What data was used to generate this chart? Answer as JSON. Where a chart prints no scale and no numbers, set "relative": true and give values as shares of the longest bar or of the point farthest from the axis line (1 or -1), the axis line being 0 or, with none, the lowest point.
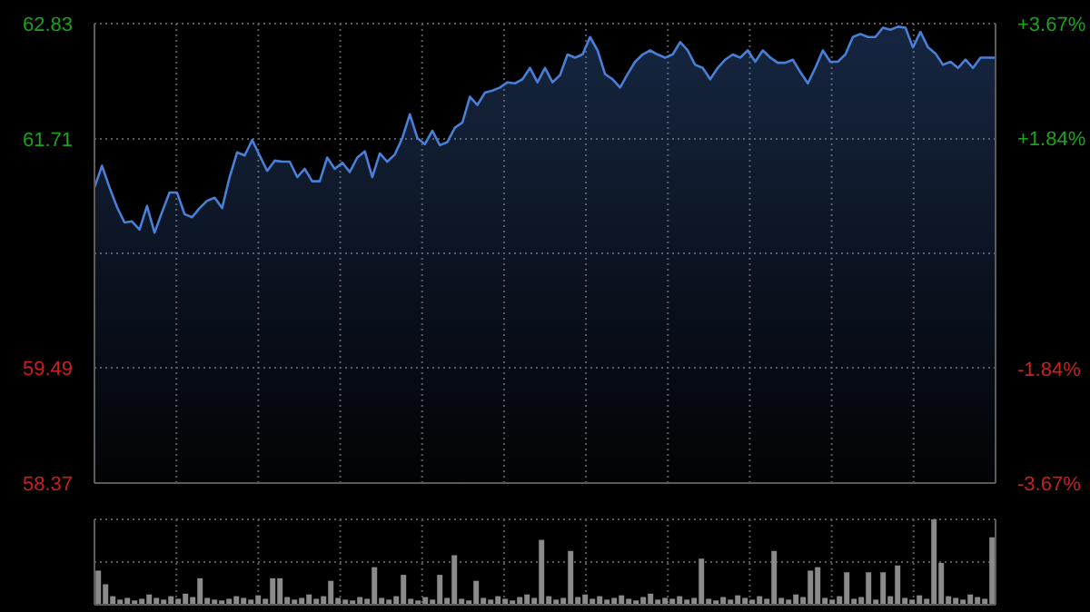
{
  "chart_data": [
    {
      "type": "area",
      "categories": [
        null,
        null,
        null,
        null,
        null,
        null,
        null,
        null,
        null,
        null,
        null,
        null,
        null,
        null,
        null,
        null,
        null,
        null,
        null,
        null,
        null,
        null,
        null,
        null,
        null,
        null,
        null,
        null,
        null,
        null,
        null,
        null,
        null,
        null,
        null,
        null,
        null,
        null,
        null,
        null,
        null,
        null,
        null,
        null,
        null,
        null,
        null,
        null,
        null,
        null,
        null,
        null,
        null,
        null,
        null,
        null,
        null,
        null,
        null,
        null,
        null,
        null,
        null,
        null,
        null,
        null,
        null,
        null,
        null,
        null,
        null,
        null,
        null,
        null,
        null,
        null,
        null,
        null,
        null,
        null,
        null,
        null,
        null,
        null,
        null,
        null,
        null,
        null,
        null,
        null,
        null,
        null,
        null,
        null,
        null,
        null,
        null,
        null,
        null,
        null,
        null,
        null,
        null,
        null,
        null,
        null,
        null,
        null,
        null,
        null,
        null,
        null,
        null,
        null,
        null,
        null,
        null,
        null,
        null,
        null,
        null
      ],
      "series": [
        {
          "color": "#4a7fd8",
          "values": [
            61.24,
            61.45,
            61.24,
            61.05,
            60.9,
            60.91,
            60.83,
            61.06,
            60.8,
            61.0,
            61.19,
            61.19,
            60.98,
            60.95,
            61.04,
            61.11,
            61.14,
            61.04,
            61.34,
            61.58,
            61.55,
            61.7,
            61.55,
            61.4,
            61.5,
            61.49,
            61.49,
            61.34,
            61.42,
            61.3,
            61.3,
            61.53,
            61.42,
            61.48,
            61.39,
            61.53,
            61.59,
            61.34,
            61.57,
            61.49,
            61.56,
            61.72,
            61.95,
            61.72,
            61.66,
            61.79,
            61.65,
            61.68,
            61.82,
            61.87,
            62.12,
            62.04,
            62.16,
            62.18,
            62.21,
            62.26,
            62.25,
            62.29,
            62.4,
            62.26,
            62.4,
            62.26,
            62.33,
            62.53,
            62.5,
            62.53,
            62.7,
            62.57,
            62.34,
            62.29,
            62.21,
            62.34,
            62.46,
            62.53,
            62.57,
            62.53,
            62.5,
            62.53,
            62.65,
            62.57,
            62.43,
            62.4,
            62.29,
            62.4,
            62.48,
            62.53,
            62.5,
            62.57,
            62.46,
            62.57,
            62.5,
            62.45,
            62.45,
            62.48,
            62.36,
            62.25,
            62.4,
            62.57,
            62.46,
            62.46,
            62.53,
            62.7,
            62.73,
            62.7,
            62.7,
            62.79,
            62.77,
            62.8,
            62.79,
            62.6,
            62.75,
            62.6,
            62.54,
            62.43,
            62.46,
            62.4,
            62.48,
            62.4,
            62.5,
            62.5,
            62.5
          ]
        }
      ],
      "ylim": [
        58.37,
        62.83
      ],
      "yticks": [
        58.37,
        59.49,
        {
          "value": 60.6,
          "label": null
        },
        61.71,
        62.83
      ],
      "y2lim": [
        -3.67,
        3.67
      ],
      "y2ticks": [
        {
          "value": -3.67,
          "label": "-3.67%"
        },
        {
          "value": -1.84,
          "label": "-1.84%"
        },
        {
          "value": 1.84,
          "label": "+1.84%"
        },
        {
          "value": 3.67,
          "label": "+3.67%"
        }
      ],
      "grid": true
    },
    {
      "type": "bar",
      "relative": true,
      "grid": true,
      "categories": [
        null,
        null,
        null,
        null,
        null,
        null,
        null,
        null,
        null,
        null,
        null,
        null,
        null,
        null,
        null,
        null,
        null,
        null,
        null,
        null,
        null,
        null,
        null,
        null,
        null,
        null,
        null,
        null,
        null,
        null,
        null,
        null,
        null,
        null,
        null,
        null,
        null,
        null,
        null,
        null,
        null,
        null,
        null,
        null,
        null,
        null,
        null,
        null,
        null,
        null,
        null,
        null,
        null,
        null,
        null,
        null,
        null,
        null,
        null,
        null,
        null,
        null,
        null,
        null,
        null,
        null,
        null,
        null,
        null,
        null,
        null,
        null,
        null,
        null,
        null,
        null,
        null,
        null,
        null,
        null,
        null,
        null,
        null,
        null,
        null,
        null,
        null,
        null,
        null,
        null,
        null,
        null,
        null,
        null,
        null,
        null,
        null,
        null,
        null,
        null,
        null,
        null,
        null,
        null,
        null,
        null,
        null,
        null,
        null,
        null,
        null,
        null,
        null,
        null,
        null,
        null,
        null,
        null,
        null,
        null,
        null,
        null,
        null,
        null
      ],
      "series": [
        {
          "color": "#8a8a8a",
          "values": [
            0.4,
            0.24,
            0.1,
            0.06,
            0.08,
            0.05,
            0.07,
            0.12,
            0.08,
            0.06,
            0.1,
            0.07,
            0.13,
            0.09,
            0.31,
            0.08,
            0.06,
            0.05,
            0.07,
            0.1,
            0.08,
            0.06,
            0.11,
            0.07,
            0.31,
            0.31,
            0.09,
            0.06,
            0.08,
            0.12,
            0.07,
            0.1,
            0.28,
            0.08,
            0.06,
            0.05,
            0.09,
            0.07,
            0.44,
            0.08,
            0.06,
            0.1,
            0.35,
            0.07,
            0.05,
            0.09,
            0.06,
            0.35,
            0.08,
            0.58,
            0.07,
            0.05,
            0.28,
            0.08,
            0.06,
            0.1,
            0.07,
            0.05,
            0.09,
            0.12,
            0.08,
            0.76,
            0.1,
            0.06,
            0.08,
            0.63,
            0.09,
            0.12,
            0.07,
            0.1,
            0.06,
            0.08,
            0.11,
            0.07,
            0.05,
            0.09,
            0.13,
            0.06,
            0.08,
            0.07,
            0.1,
            0.06,
            0.08,
            0.54,
            0.07,
            0.05,
            0.09,
            0.06,
            0.11,
            0.08,
            0.06,
            0.1,
            0.07,
            0.63,
            0.08,
            0.06,
            0.12,
            0.09,
            0.4,
            0.44,
            0.08,
            0.06,
            0.1,
            0.38,
            0.07,
            0.09,
            0.38,
            0.06,
            0.38,
            0.1,
            0.46,
            0.08,
            0.06,
            0.11,
            0.07,
            1,
            0.49,
            0.1,
            0.08,
            0.06,
            0.12,
            0.09,
            0.07,
            0.79
          ]
        }
      ]
    }
  ]
}
